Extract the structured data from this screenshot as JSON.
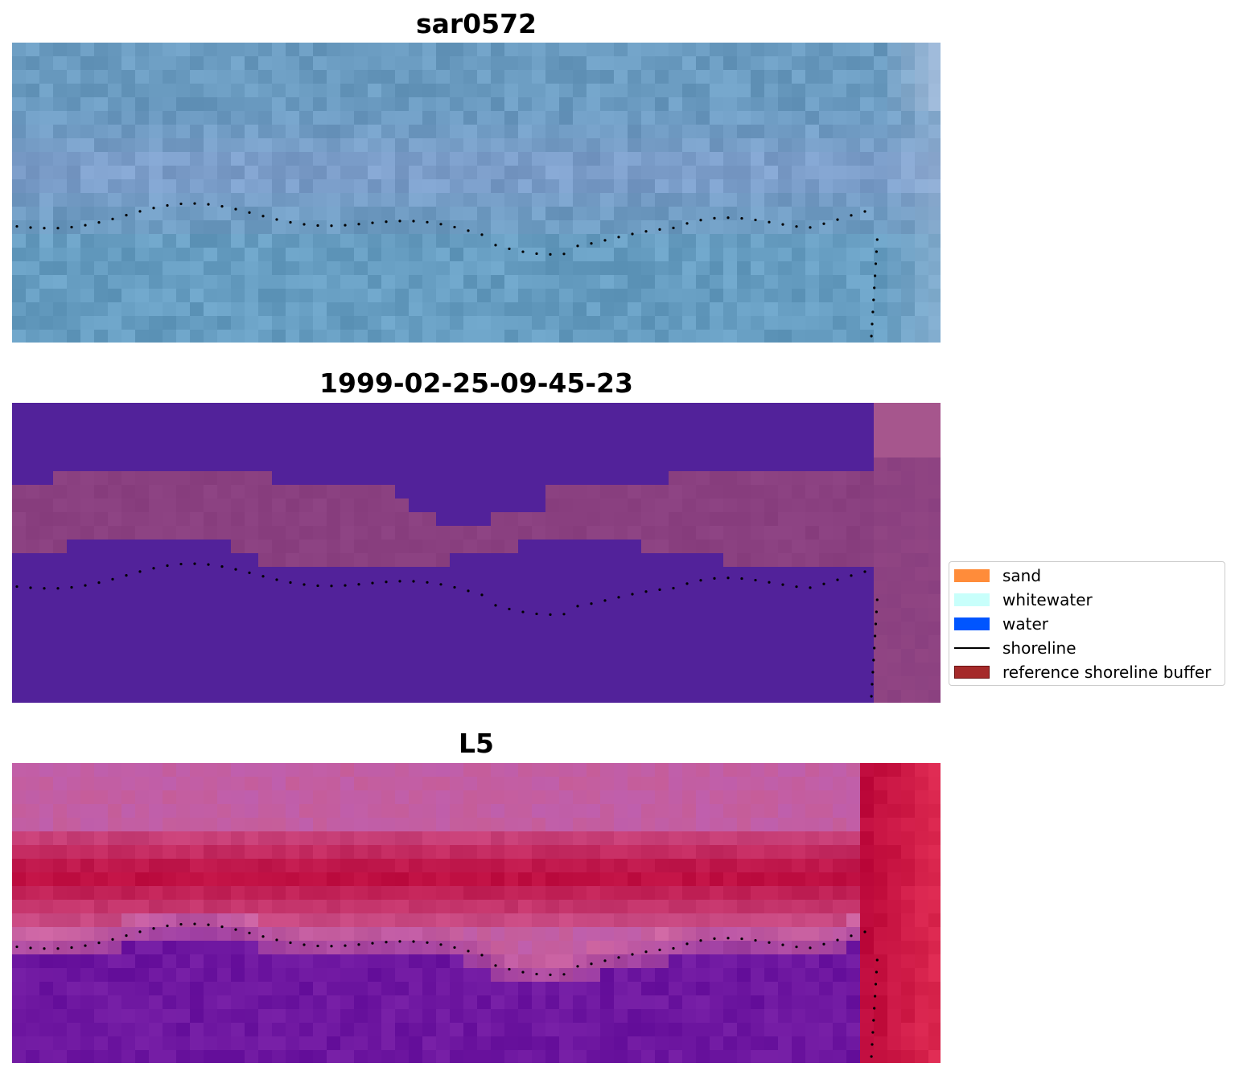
{
  "panels": [
    {
      "title": "sar0572",
      "style": "sar"
    },
    {
      "title": "1999-02-25-09-45-23",
      "style": "class"
    },
    {
      "title": "L5",
      "style": "index"
    }
  ],
  "legend": {
    "items": [
      {
        "label": "sand",
        "color": "#ff8c3a",
        "kind": "patch"
      },
      {
        "label": "whitewater",
        "color": "#c8fffb",
        "kind": "patch"
      },
      {
        "label": "water",
        "color": "#0055ff",
        "kind": "patch"
      },
      {
        "label": "shoreline",
        "color": "#000000",
        "kind": "line"
      },
      {
        "label": "reference shoreline buffer",
        "color": "#a52a2a",
        "kind": "patch"
      }
    ]
  },
  "colors": {
    "sar_base": "#6a9bc0",
    "class_water": "#52229a",
    "class_land": "#8a4080",
    "index_high": "#be0a3c",
    "index_low": "#6a14a0"
  }
}
